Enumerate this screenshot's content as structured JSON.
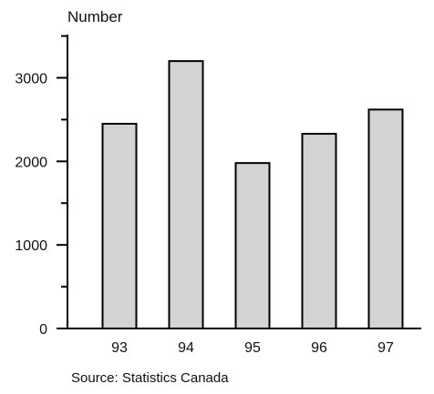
{
  "chart_data": {
    "type": "bar",
    "ylabel": "Number",
    "categories": [
      "93",
      "94",
      "95",
      "96",
      "97"
    ],
    "values": [
      2450,
      3200,
      1980,
      2330,
      2620
    ],
    "ylim": [
      0,
      3500
    ],
    "yticks": [
      0,
      1000,
      2000,
      3000
    ],
    "y_tick_labels": [
      "0",
      "1000",
      "2000",
      "3000"
    ],
    "grid": false,
    "legend": "none",
    "bar_color": "#d3d3d3",
    "source": "Source:  Statistics Canada"
  }
}
